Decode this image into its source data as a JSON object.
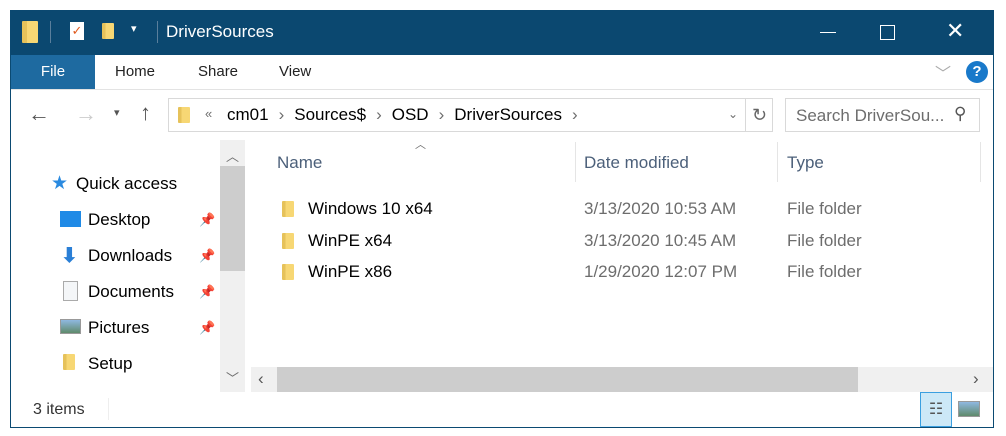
{
  "window": {
    "title": "DriverSources",
    "minimize_icon": "minimize-icon",
    "maximize_icon": "maximize-icon",
    "close_icon": "close-icon"
  },
  "ribbon": {
    "tabs": [
      {
        "label": "File"
      },
      {
        "label": "Home"
      },
      {
        "label": "Share"
      },
      {
        "label": "View"
      }
    ],
    "help": "?"
  },
  "address": {
    "overflow": "«",
    "crumbs": [
      "cm01",
      "Sources$",
      "OSD",
      "DriverSources"
    ]
  },
  "search": {
    "placeholder": "Search DriverSou..."
  },
  "nav": {
    "items": [
      {
        "label": "Quick access",
        "icon": "star-icon"
      },
      {
        "label": "Desktop",
        "icon": "desktop-icon",
        "pinned": true
      },
      {
        "label": "Downloads",
        "icon": "download-icon",
        "pinned": true
      },
      {
        "label": "Documents",
        "icon": "documents-icon",
        "pinned": true
      },
      {
        "label": "Pictures",
        "icon": "pictures-icon",
        "pinned": true
      },
      {
        "label": "Setup",
        "icon": "folder-icon",
        "pinned": false
      }
    ]
  },
  "columns": [
    "Name",
    "Date modified",
    "Type"
  ],
  "files": [
    {
      "name": "Windows 10 x64",
      "date": "3/13/2020 10:53 AM",
      "type": "File folder"
    },
    {
      "name": "WinPE x64",
      "date": "3/13/2020 10:45 AM",
      "type": "File folder"
    },
    {
      "name": "WinPE x86",
      "date": "1/29/2020 12:07 PM",
      "type": "File folder"
    }
  ],
  "status": {
    "count": "3 items"
  },
  "colors": {
    "titlebar": "#0b4870",
    "file_tab": "#1e6aa0",
    "accent": "#1979ca"
  }
}
